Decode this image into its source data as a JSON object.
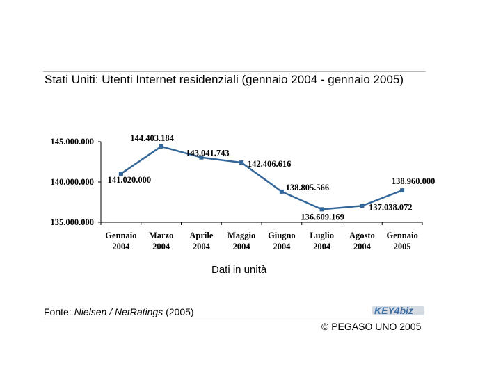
{
  "title": "Stati Uniti: Utenti Internet residenziali (gennaio 2004 - gennaio 2005)",
  "unit_note": "Dati in unità",
  "source": {
    "prefix": "Fonte: ",
    "name": "Nielsen / NetRatings",
    "suffix": " (2005)"
  },
  "logo_text": "KEY4biz",
  "copyright": "© PEGASO UNO 2005",
  "colors": {
    "line": "#336699",
    "axis": "#000000"
  },
  "chart_data": {
    "type": "line",
    "categories": [
      [
        "Gennaio",
        "2004"
      ],
      [
        "Marzo",
        "2004"
      ],
      [
        "Aprile",
        "2004"
      ],
      [
        "Maggio",
        "2004"
      ],
      [
        "Giugno",
        "2004"
      ],
      [
        "Luglio",
        "2004"
      ],
      [
        "Agosto",
        "2004"
      ],
      [
        "Gennaio",
        "2005"
      ]
    ],
    "series": [
      {
        "values": [
          141020000,
          144403184,
          143041743,
          142406616,
          138805566,
          136609169,
          137038072,
          138960000
        ],
        "labels": [
          "141.020.000",
          "144.403.184",
          "143.041.743",
          "142.406.616",
          "138.805.566",
          "136.609.169",
          "137.038.072",
          "138.960.000"
        ]
      }
    ],
    "yticks": [
      135000000,
      140000000,
      145000000
    ],
    "ytick_labels": [
      "135.000.000",
      "140.000.000",
      "145.000.000"
    ],
    "ylim": [
      135000000,
      145000000
    ],
    "grid": false,
    "legend": "none"
  }
}
